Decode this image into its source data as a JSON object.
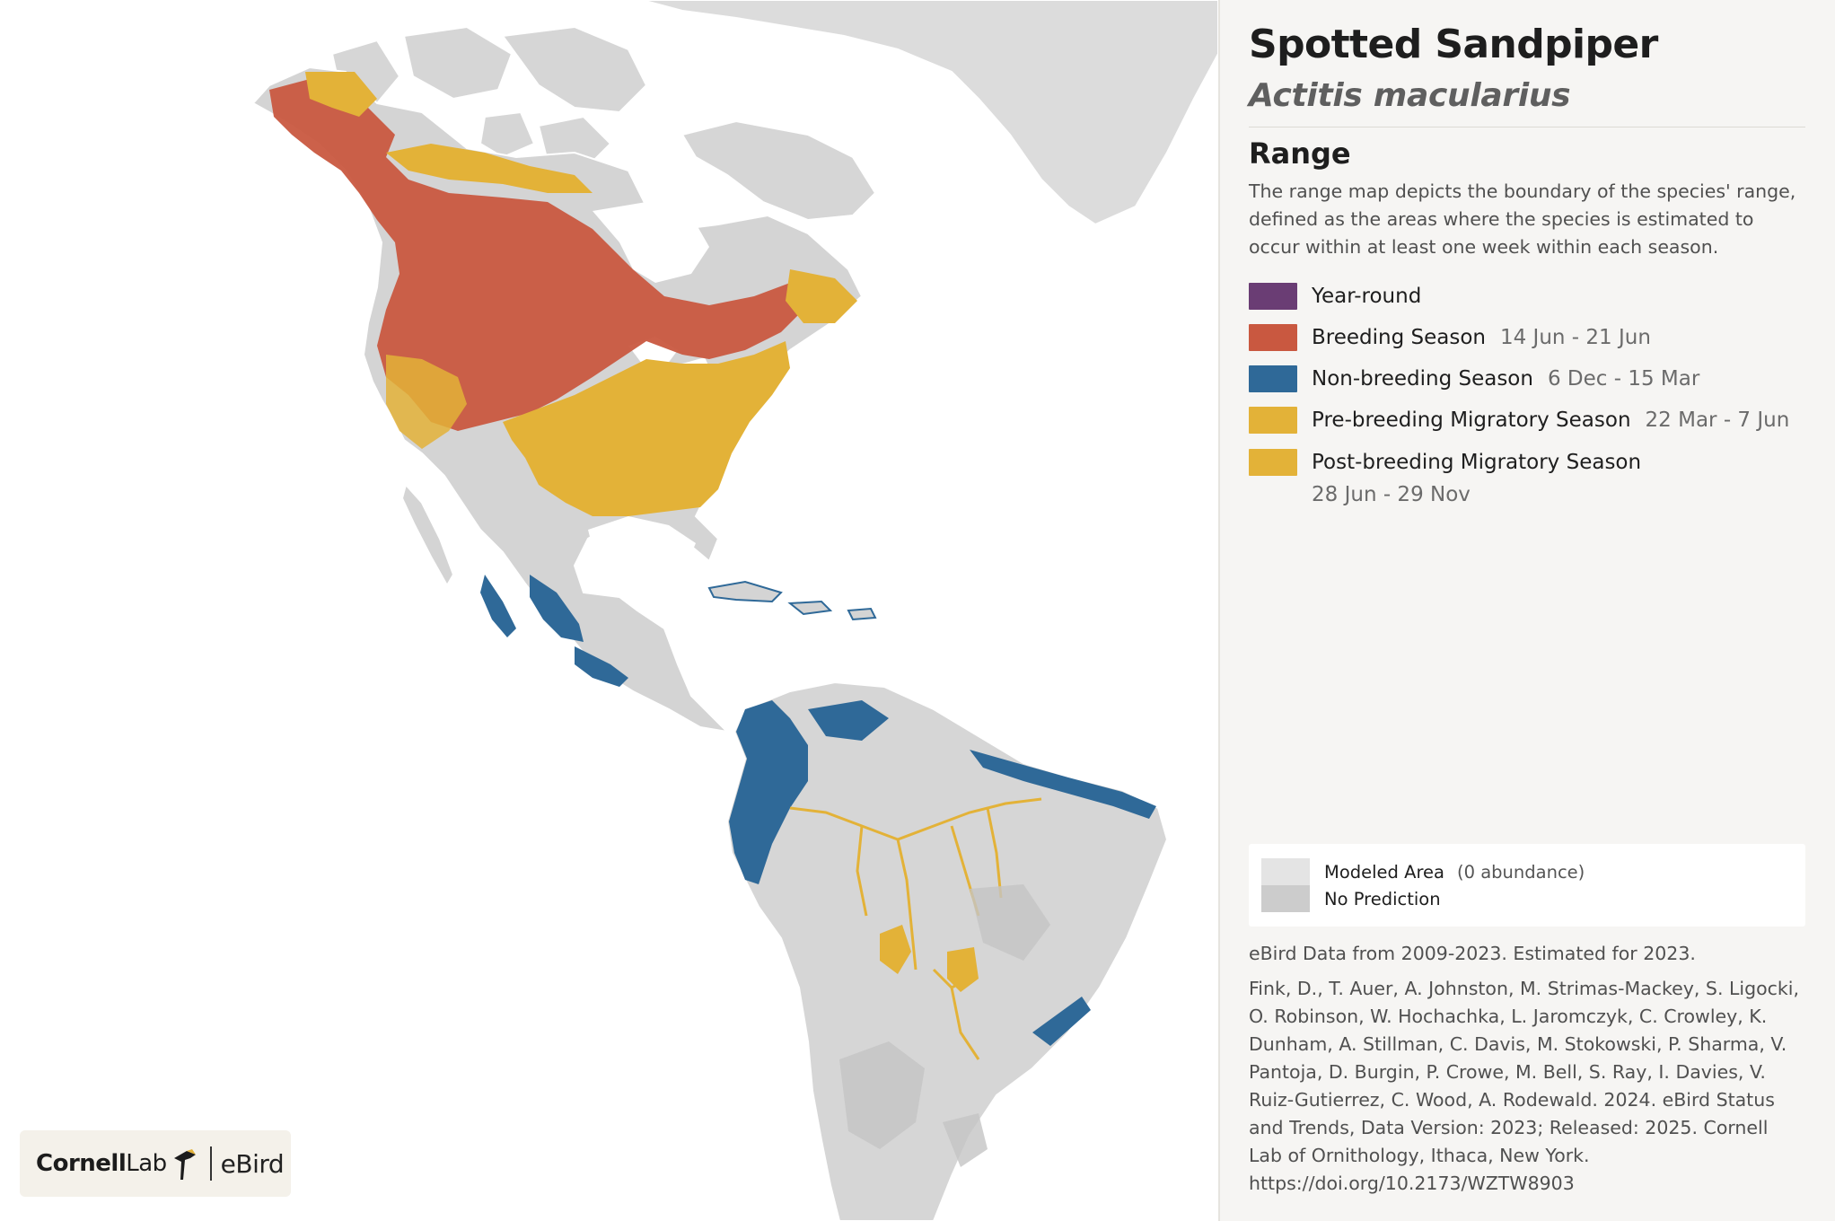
{
  "species": {
    "common_name": "Spotted Sandpiper",
    "scientific_name": "Actitis macularius"
  },
  "range": {
    "heading": "Range",
    "description": "The range map depicts the boundary of the species' range, defined as the areas where the species is estimated to occur within at least one week within each season."
  },
  "legend": [
    {
      "label": "Year-round",
      "dates": "",
      "color": "#6a3d74"
    },
    {
      "label": "Breeding Season",
      "dates": "14 Jun - 21 Jun",
      "color": "#c95840"
    },
    {
      "label": "Non-breeding Season",
      "dates": "6 Dec - 15 Mar",
      "color": "#2f6998"
    },
    {
      "label": "Pre-breeding Migratory Season",
      "dates": "22 Mar - 7 Jun",
      "color": "#e3b238"
    },
    {
      "label": "Post-breeding Migratory Season",
      "dates": "28 Jun - 29 Nov",
      "color": "#e3b238"
    }
  ],
  "modeled": {
    "modeled_area_label": "Modeled Area",
    "modeled_area_note": "(0 abundance)",
    "modeled_area_color": "#e4e4e4",
    "no_prediction_label": "No Prediction",
    "no_prediction_color": "#cccccc"
  },
  "data_note": "eBird Data from 2009-2023. Estimated for 2023.",
  "citation": "Fink, D., T. Auer, A. Johnston, M. Strimas-Mackey, S. Ligocki, O. Robinson, W. Hochachka, L. Jaromczyk, C. Crowley, K. Dunham, A. Stillman, C. Davis, M. Stokowski, P. Sharma, V. Pantoja, D. Burgin, P. Crowe, M. Bell, S. Ray, I. Davies, V. Ruiz-Gutierrez, C. Wood, A. Rodewald. 2024. eBird Status and Trends, Data Version: 2023; Released: 2025. Cornell Lab of Ornithology, Ithaca, New York. https://doi.org/10.2173/WZTW8903",
  "logo": {
    "cornell": "Cornell",
    "lab": "Lab",
    "ebird": "eBird"
  }
}
